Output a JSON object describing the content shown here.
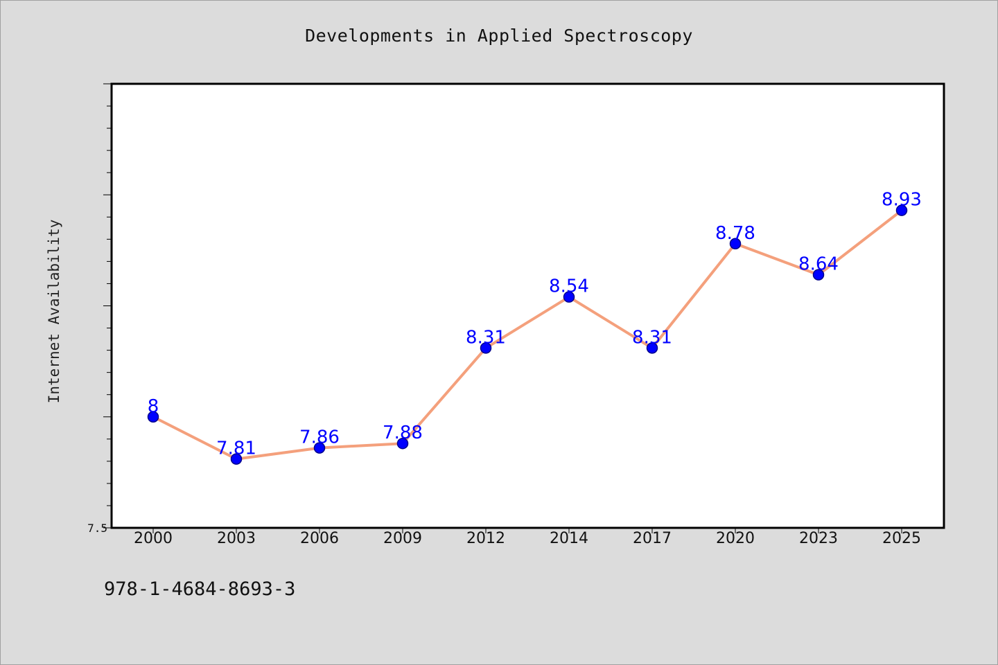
{
  "title": "Developments in Applied Spectroscopy",
  "caption": "978-1-4684-8693-3",
  "chart_data": {
    "type": "line",
    "title": "Developments in Applied Spectroscopy",
    "xlabel": "",
    "ylabel": "Internet Availability",
    "categories": [
      "2000",
      "2003",
      "2006",
      "2009",
      "2012",
      "2014",
      "2017",
      "2020",
      "2023",
      "2025"
    ],
    "series": [
      {
        "values": [
          8,
          7.81,
          7.86,
          7.88,
          8.31,
          8.54,
          8.31,
          8.78,
          8.64,
          8.93
        ]
      }
    ],
    "data_labels": [
      "8",
      "7.81",
      "7.86",
      "7.88",
      "8.31",
      "8.54",
      "8.31",
      "8.78",
      "8.64",
      "8.93"
    ],
    "ylim": [
      7.5,
      9.5
    ],
    "yticks_labeled": [
      {
        "value": 7.5,
        "label": "7.5"
      }
    ],
    "grid": false,
    "legend": "none",
    "colors": {
      "line": "#f4a07c",
      "marker_fill": "#0000ff",
      "marker_edge": "#00008b",
      "data_label": "#0000ff",
      "plot_background": "#ffffff",
      "page_background": "#dcdcdc"
    }
  }
}
